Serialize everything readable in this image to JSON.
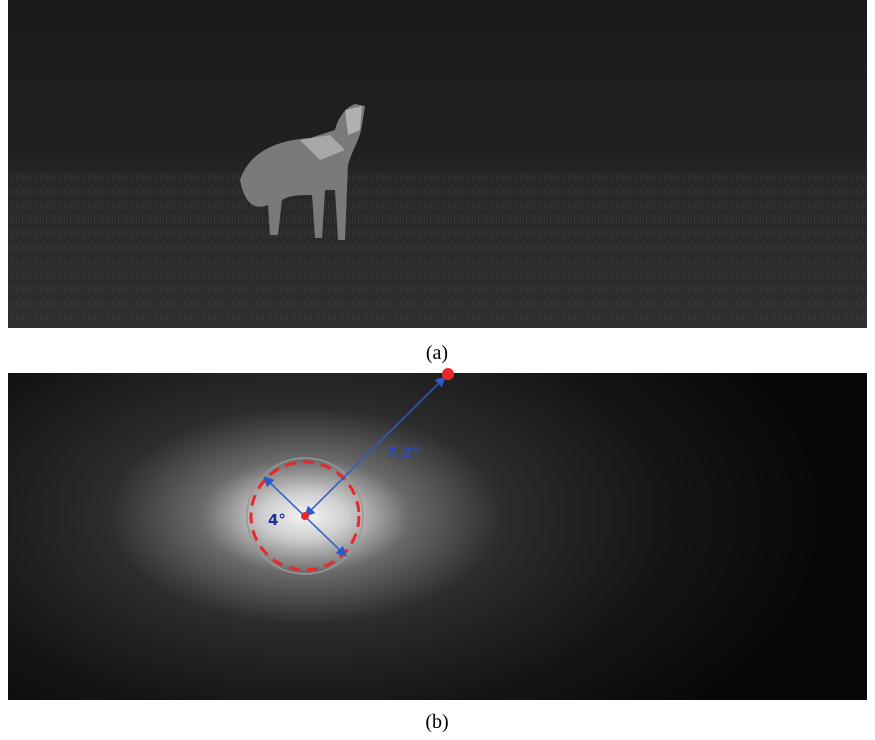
{
  "panels": [
    {
      "caption": "(a)"
    },
    {
      "caption": "(b)",
      "annotations": {
        "outer": "7.2°",
        "inner": "4°"
      }
    }
  ]
}
